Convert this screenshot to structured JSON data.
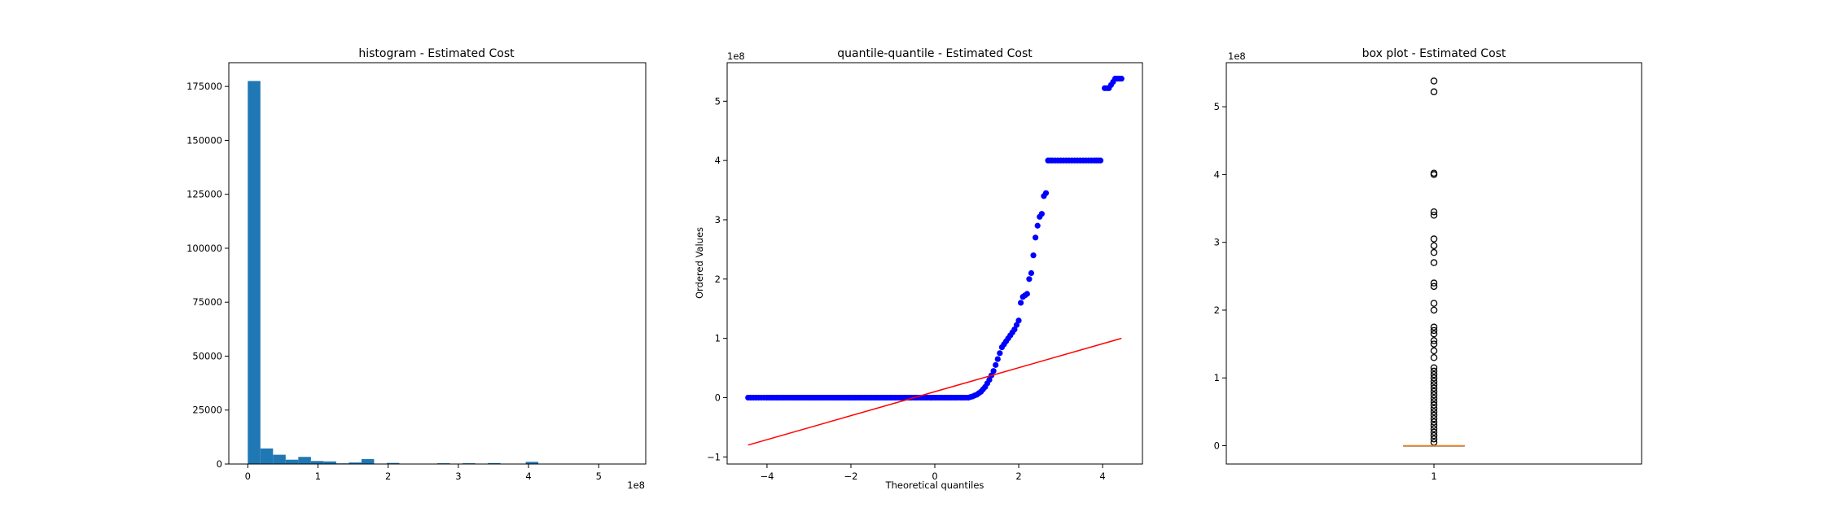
{
  "chart_data": [
    {
      "type": "bar",
      "title": "histogram - Estimated Cost",
      "xlabel": "",
      "ylabel": "",
      "x_offset_label": "1e8",
      "x_scale": 100000000,
      "xlim": [
        -0.27,
        5.67
      ],
      "ylim": [
        0,
        186000
      ],
      "x_ticks": [
        0,
        1,
        2,
        3,
        4,
        5
      ],
      "y_ticks": [
        0,
        25000,
        50000,
        75000,
        100000,
        125000,
        150000,
        175000
      ],
      "bar_color": "#1f77b4",
      "bins": [
        {
          "x0": 0.0,
          "x1": 0.18,
          "value": 177500
        },
        {
          "x0": 0.18,
          "x1": 0.36,
          "value": 7200
        },
        {
          "x0": 0.36,
          "x1": 0.54,
          "value": 4300
        },
        {
          "x0": 0.54,
          "x1": 0.72,
          "value": 2000
        },
        {
          "x0": 0.72,
          "x1": 0.9,
          "value": 3300
        },
        {
          "x0": 0.9,
          "x1": 1.08,
          "value": 1400
        },
        {
          "x0": 1.08,
          "x1": 1.26,
          "value": 1200
        },
        {
          "x0": 1.26,
          "x1": 1.44,
          "value": 300
        },
        {
          "x0": 1.44,
          "x1": 1.62,
          "value": 700
        },
        {
          "x0": 1.62,
          "x1": 1.8,
          "value": 2300
        },
        {
          "x0": 1.8,
          "x1": 1.98,
          "value": 200
        },
        {
          "x0": 1.98,
          "x1": 2.16,
          "value": 500
        },
        {
          "x0": 2.16,
          "x1": 2.34,
          "value": 150
        },
        {
          "x0": 2.7,
          "x1": 2.88,
          "value": 350
        },
        {
          "x0": 3.06,
          "x1": 3.24,
          "value": 350
        },
        {
          "x0": 3.42,
          "x1": 3.6,
          "value": 450
        },
        {
          "x0": 3.96,
          "x1": 4.14,
          "value": 1000
        },
        {
          "x0": 5.22,
          "x1": 5.4,
          "value": 120
        }
      ]
    },
    {
      "type": "scatter",
      "title": "quantile-quantile - Estimated Cost",
      "xlabel": "Theoretical quantiles",
      "ylabel": "Ordered Values",
      "y_offset_label": "1e8",
      "y_scale": 100000000,
      "xlim": [
        -4.95,
        4.95
      ],
      "ylim": [
        -1.12,
        5.65
      ],
      "x_ticks": [
        -4,
        -2,
        0,
        2,
        4
      ],
      "y_ticks": [
        -1,
        0,
        1,
        2,
        3,
        4,
        5
      ],
      "point_color": "#0000ff",
      "line_color": "#ff0000",
      "fit_line": {
        "x": [
          -4.45,
          4.45
        ],
        "y": [
          -0.8,
          1.0
        ]
      },
      "points_x": [
        -4.45,
        -4.2,
        -4.0,
        -3.5,
        -3.0,
        -2.5,
        -2.0,
        -1.5,
        -1.0,
        -0.5,
        0.0,
        0.5,
        0.8,
        0.9,
        1.0,
        1.1,
        1.2,
        1.3,
        1.4,
        1.5,
        1.6,
        1.7,
        1.8,
        1.9,
        2.0,
        2.05,
        2.1,
        2.2,
        2.25,
        2.3,
        2.35,
        2.4,
        2.45,
        2.5,
        2.55,
        2.6,
        2.65,
        2.7,
        2.75,
        2.8,
        3.0,
        3.2,
        3.4,
        3.6,
        3.8,
        3.95,
        4.05,
        4.15,
        4.3,
        4.45
      ],
      "points_y": [
        0.0,
        0.0,
        0.0,
        0.0,
        0.0,
        0.0,
        0.0,
        0.0,
        0.0,
        0.0,
        0.0,
        0.0,
        0.0,
        0.02,
        0.05,
        0.1,
        0.18,
        0.3,
        0.45,
        0.65,
        0.85,
        0.95,
        1.05,
        1.15,
        1.3,
        1.6,
        1.7,
        1.75,
        2.0,
        2.1,
        2.4,
        2.7,
        2.9,
        3.05,
        3.1,
        3.4,
        3.45,
        4.0,
        4.0,
        4.0,
        4.0,
        4.0,
        4.0,
        4.0,
        4.0,
        4.0,
        5.22,
        5.22,
        5.38,
        5.38
      ]
    },
    {
      "type": "box",
      "title": "box plot - Estimated Cost",
      "xlabel": "",
      "ylabel": "",
      "y_offset_label": "1e8",
      "y_scale": 100000000,
      "xlim": [
        0.5,
        1.5
      ],
      "ylim": [
        -0.27,
        5.65
      ],
      "x_ticks": [
        1
      ],
      "x_tick_labels": [
        "1"
      ],
      "y_ticks": [
        0,
        1,
        2,
        3,
        4,
        5
      ],
      "median_color": "#ff7f0e",
      "box": {
        "q1": 0.0,
        "median": 0.0,
        "q3": 0.0,
        "whisker_low": 0.0,
        "whisker_high": 0.0
      },
      "fliers": [
        0.05,
        0.1,
        0.15,
        0.2,
        0.25,
        0.3,
        0.35,
        0.4,
        0.45,
        0.5,
        0.55,
        0.6,
        0.65,
        0.7,
        0.75,
        0.8,
        0.85,
        0.9,
        0.95,
        1.0,
        1.05,
        1.1,
        1.15,
        1.3,
        1.4,
        1.5,
        1.55,
        1.65,
        1.7,
        1.75,
        2.0,
        2.1,
        2.35,
        2.4,
        2.7,
        2.85,
        2.95,
        3.05,
        3.4,
        3.45,
        4.0,
        4.02,
        5.22,
        5.38
      ]
    }
  ]
}
